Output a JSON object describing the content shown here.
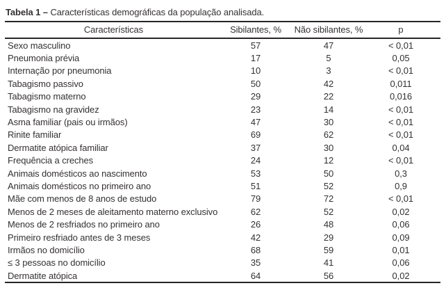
{
  "colors": {
    "text": "#343031",
    "rule": "#282425",
    "background": "#ffffff"
  },
  "caption": {
    "label": "Tabela 1",
    "separator": "–",
    "text": "Características demográficas da população analisada."
  },
  "table": {
    "columns": [
      "Características",
      "Sibilantes, %",
      "Não sibilantes, %",
      "p"
    ],
    "rows": [
      {
        "caracteristica": "Sexo masculino",
        "sibilantes": "57",
        "nao_sibilantes": "47",
        "p": "< 0,01"
      },
      {
        "caracteristica": "Pneumonia prévia",
        "sibilantes": "17",
        "nao_sibilantes": "5",
        "p": "0,05"
      },
      {
        "caracteristica": "Internação por pneumonia",
        "sibilantes": "10",
        "nao_sibilantes": "3",
        "p": "< 0,01"
      },
      {
        "caracteristica": "Tabagismo passivo",
        "sibilantes": "50",
        "nao_sibilantes": "42",
        "p": "0,011"
      },
      {
        "caracteristica": "Tabagismo materno",
        "sibilantes": "29",
        "nao_sibilantes": "22",
        "p": "0,016"
      },
      {
        "caracteristica": "Tabagismo na gravidez",
        "sibilantes": "23",
        "nao_sibilantes": "14",
        "p": "< 0,01"
      },
      {
        "caracteristica": "Asma familiar (pais ou irmãos)",
        "sibilantes": "47",
        "nao_sibilantes": "30",
        "p": "< 0,01"
      },
      {
        "caracteristica": "Rinite familiar",
        "sibilantes": "69",
        "nao_sibilantes": "62",
        "p": "< 0,01"
      },
      {
        "caracteristica": "Dermatite atópica familiar",
        "sibilantes": "37",
        "nao_sibilantes": "30",
        "p": "0,04"
      },
      {
        "caracteristica": "Frequência a creches",
        "sibilantes": "24",
        "nao_sibilantes": "12",
        "p": "< 0,01"
      },
      {
        "caracteristica": "Animais domésticos ao nascimento",
        "sibilantes": "53",
        "nao_sibilantes": "50",
        "p": "0,3"
      },
      {
        "caracteristica": "Animais domésticos no primeiro ano",
        "sibilantes": "51",
        "nao_sibilantes": "52",
        "p": "0,9"
      },
      {
        "caracteristica": "Mãe com menos de 8 anos de estudo",
        "sibilantes": "79",
        "nao_sibilantes": "72",
        "p": "< 0,01"
      },
      {
        "caracteristica": "Menos de 2 meses de aleitamento materno exclusivo",
        "sibilantes": "62",
        "nao_sibilantes": "52",
        "p": "0,02"
      },
      {
        "caracteristica": "Menos de 2 resfriados no primeiro ano",
        "sibilantes": "26",
        "nao_sibilantes": "48",
        "p": "0,06"
      },
      {
        "caracteristica": "Primeiro resfriado antes de 3 meses",
        "sibilantes": "42",
        "nao_sibilantes": "29",
        "p": "0,09"
      },
      {
        "caracteristica": "Irmãos no domicílio",
        "sibilantes": "68",
        "nao_sibilantes": "59",
        "p": "0,01"
      },
      {
        "caracteristica": "≤ 3 pessoas no domicílio",
        "sibilantes": "35",
        "nao_sibilantes": "41",
        "p": "0,06"
      },
      {
        "caracteristica": "Dermatite atópica",
        "sibilantes": "64",
        "nao_sibilantes": "56",
        "p": "0,02"
      }
    ]
  }
}
